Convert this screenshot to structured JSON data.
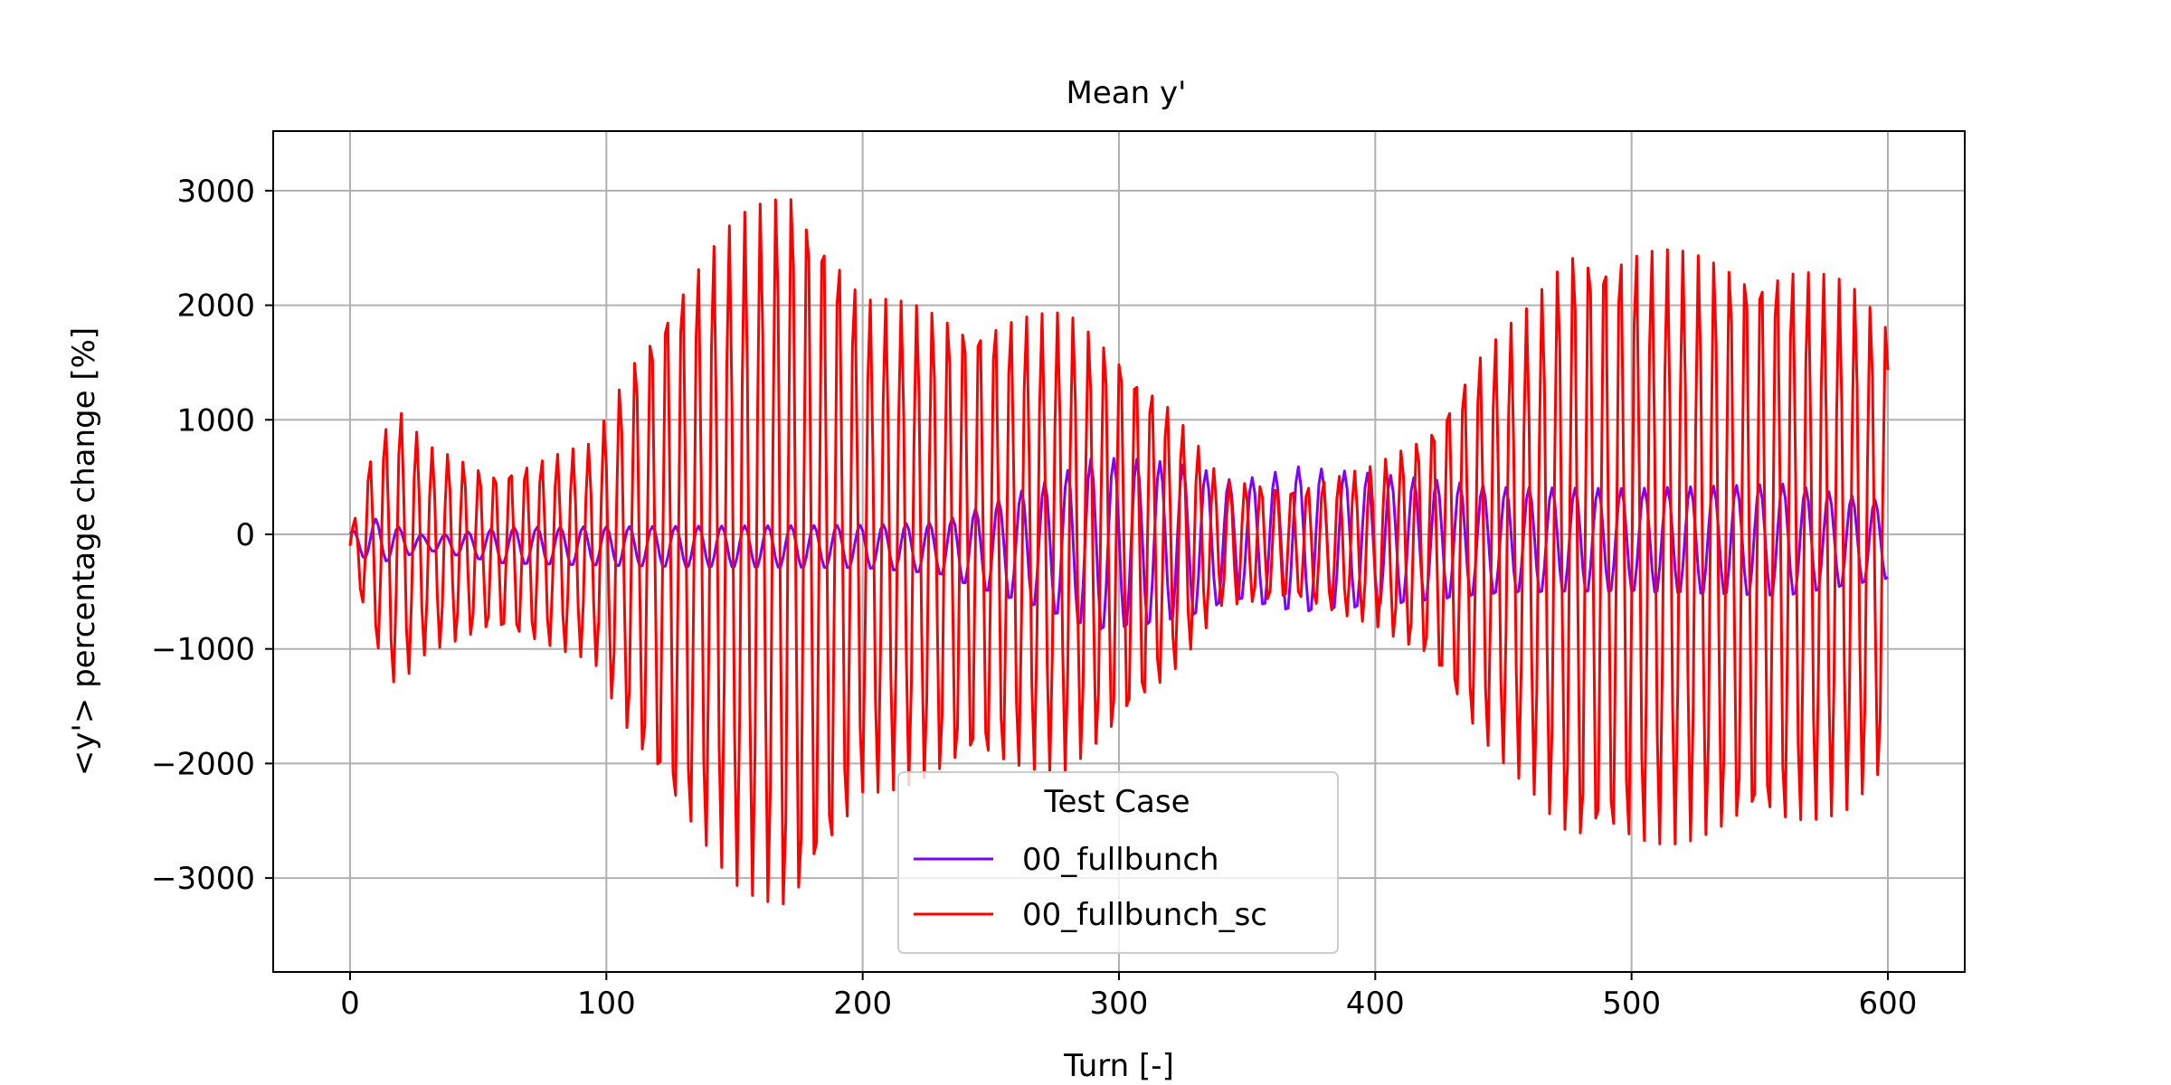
{
  "chart_data": {
    "type": "line",
    "title": "Mean y'",
    "xlabel": "Turn [-]",
    "ylabel": "<y'> percentage change [%]",
    "xlim": [
      -30,
      630
    ],
    "ylim": [
      -3820,
      3520
    ],
    "xticks": [
      0,
      100,
      200,
      300,
      400,
      500,
      600
    ],
    "yticks": [
      -3000,
      -2000,
      -1000,
      0,
      1000,
      2000,
      3000
    ],
    "xtick_labels": [
      "0",
      "100",
      "200",
      "300",
      "400",
      "500",
      "600"
    ],
    "ytick_labels": [
      "−3000",
      "−2000",
      "−1000",
      "0",
      "1000",
      "2000",
      "3000"
    ],
    "grid": true,
    "legend": {
      "title": "Test Case",
      "position": "lower-center"
    },
    "series": [
      {
        "name": "00_fullbunch",
        "color": "#7f00ff",
        "period": 9.0,
        "phase": 0.9,
        "offset_points": [
          [
            0,
            -60
          ],
          [
            60,
            -100
          ],
          [
            120,
            -110
          ],
          [
            200,
            -110
          ],
          [
            240,
            -130
          ],
          [
            290,
            -100
          ],
          [
            340,
            -60
          ],
          [
            400,
            -60
          ],
          [
            500,
            -60
          ],
          [
            600,
            -60
          ]
        ],
        "amplitude_points": [
          [
            0,
            80
          ],
          [
            10,
            200
          ],
          [
            30,
            60
          ],
          [
            60,
            160
          ],
          [
            120,
            180
          ],
          [
            200,
            190
          ],
          [
            230,
            230
          ],
          [
            250,
            400
          ],
          [
            270,
            560
          ],
          [
            290,
            770
          ],
          [
            310,
            740
          ],
          [
            330,
            660
          ],
          [
            345,
            520
          ],
          [
            370,
            650
          ],
          [
            400,
            590
          ],
          [
            450,
            470
          ],
          [
            500,
            460
          ],
          [
            560,
            500
          ],
          [
            600,
            340
          ]
        ]
      },
      {
        "name": "00_fullbunch_sc",
        "color": "#ff0000",
        "period": 6.1,
        "phase": 0.0,
        "offset_points": [
          [
            0,
            -100
          ],
          [
            60,
            -150
          ],
          [
            170,
            -150
          ],
          [
            220,
            -80
          ],
          [
            300,
            -60
          ],
          [
            360,
            -80
          ],
          [
            440,
            -110
          ],
          [
            520,
            -110
          ],
          [
            600,
            -100
          ]
        ],
        "amplitude_points": [
          [
            0,
            100
          ],
          [
            8,
            800
          ],
          [
            18,
            1250
          ],
          [
            30,
            900
          ],
          [
            55,
            700
          ],
          [
            95,
            950
          ],
          [
            110,
            1700
          ],
          [
            125,
            2300
          ],
          [
            150,
            2900
          ],
          [
            172,
            3250
          ],
          [
            185,
            2900
          ],
          [
            200,
            2200
          ],
          [
            240,
            2000
          ],
          [
            280,
            2000
          ],
          [
            300,
            1700
          ],
          [
            320,
            1200
          ],
          [
            340,
            550
          ],
          [
            370,
            500
          ],
          [
            400,
            700
          ],
          [
            420,
            1000
          ],
          [
            440,
            1700
          ],
          [
            460,
            2100
          ],
          [
            478,
            2700
          ],
          [
            500,
            2650
          ],
          [
            530,
            2550
          ],
          [
            560,
            2500
          ],
          [
            585,
            2300
          ],
          [
            600,
            2000
          ]
        ]
      }
    ]
  }
}
